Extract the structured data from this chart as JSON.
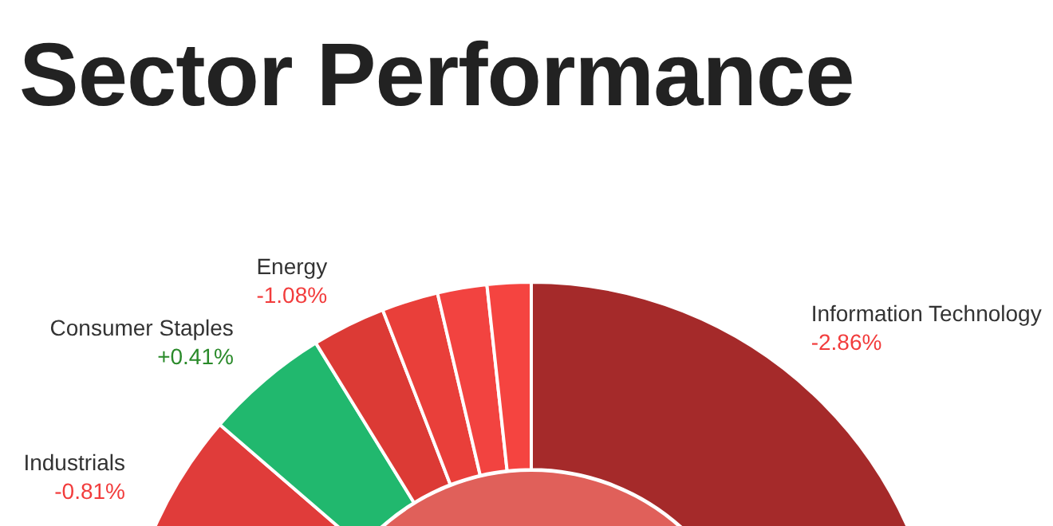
{
  "chart_data": {
    "type": "donut",
    "title": "Sector Performance",
    "categories": [
      "Information Technology",
      "Industrials",
      "Consumer Staples",
      "Energy",
      null,
      null,
      null
    ],
    "values": [
      50.0,
      36.34,
      4.89,
      2.89,
      2.22,
      1.94,
      1.72
    ],
    "colors": [
      "#a52a2a",
      "#e03c3a",
      "#21b86e",
      "#dc3a35",
      "#e93f3a",
      "#f24340",
      "#f54440"
    ],
    "annotations": [
      {
        "text": "-2.86%",
        "x": "Information Technology"
      },
      {
        "text": "-0.81%",
        "x": "Industrials"
      },
      {
        "text": "+0.41%",
        "x": "Consumer Staples"
      },
      {
        "text": "-1.08%",
        "x": "Energy"
      }
    ]
  }
}
